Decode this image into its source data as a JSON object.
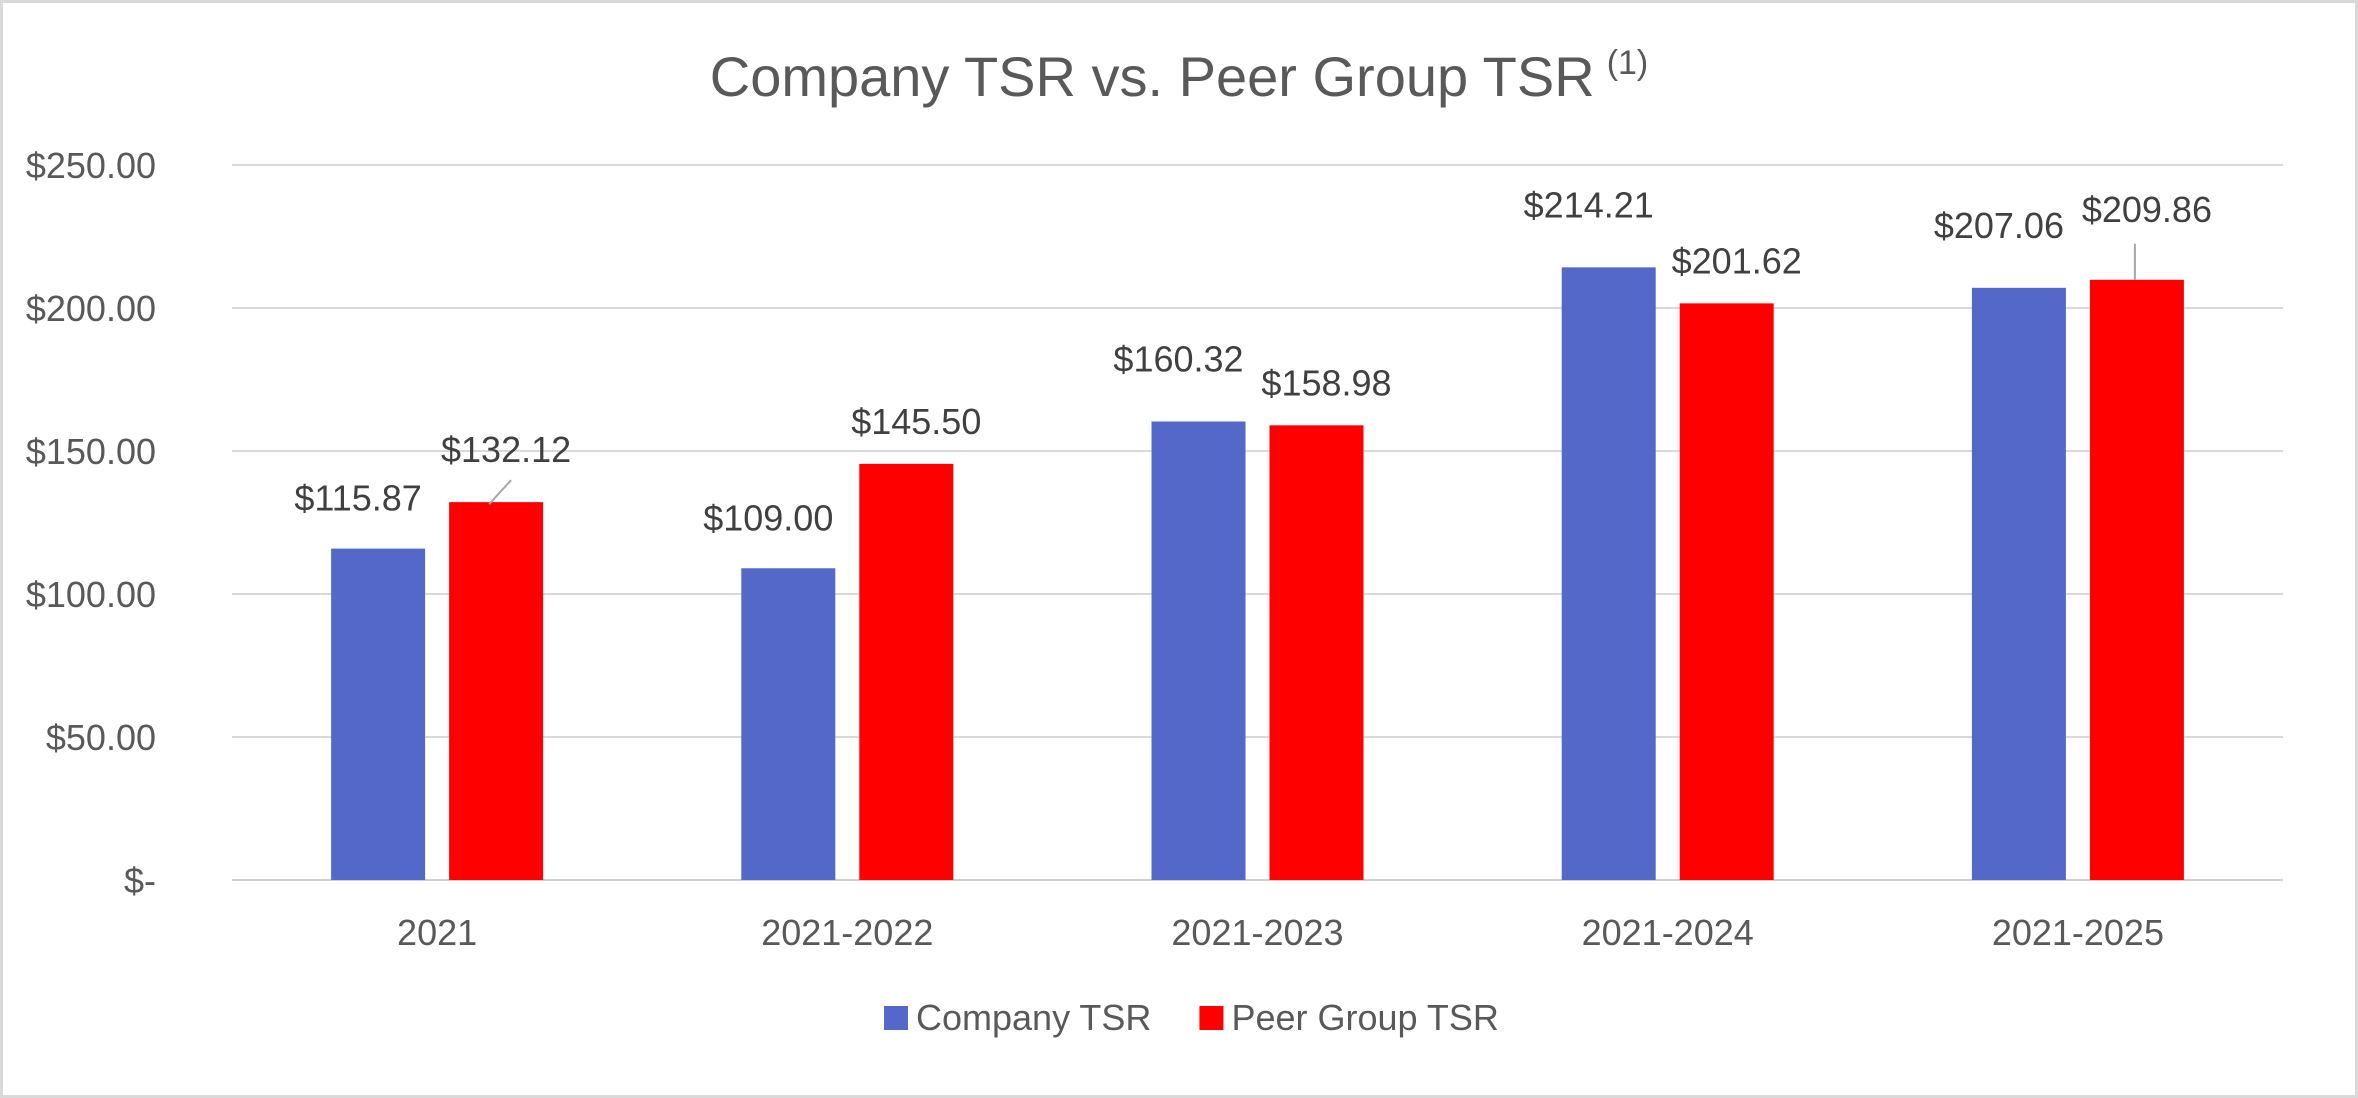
{
  "chart_data": {
    "type": "bar",
    "title": "Company TSR vs. Peer Group TSR",
    "title_superscript": "(1)",
    "xlabel": "",
    "ylabel": "",
    "categories": [
      "2021",
      "2021-2022",
      "2021-2023",
      "2021-2024",
      "2021-2025"
    ],
    "series": [
      {
        "name": "Company TSR",
        "color": "#5368c9",
        "values": [
          115.87,
          109.0,
          160.32,
          214.21,
          207.06
        ],
        "labels": [
          "$115.87",
          "$109.00",
          "$160.32",
          "$214.21",
          "$207.06"
        ]
      },
      {
        "name": "Peer Group TSR",
        "color": "#ff0000",
        "values": [
          132.12,
          145.5,
          158.98,
          201.62,
          209.86
        ],
        "labels": [
          "$132.12",
          "$145.50",
          "$158.98",
          "$201.62",
          "$209.86"
        ]
      }
    ],
    "ylim": [
      0,
      250
    ],
    "yticks": [
      0,
      50,
      100,
      150,
      200,
      250
    ],
    "ytick_labels": [
      "$-",
      "$50.00",
      "$100.00",
      "$150.00",
      "$200.00",
      "$250.00"
    ],
    "grid": true,
    "legend_position": "bottom"
  }
}
